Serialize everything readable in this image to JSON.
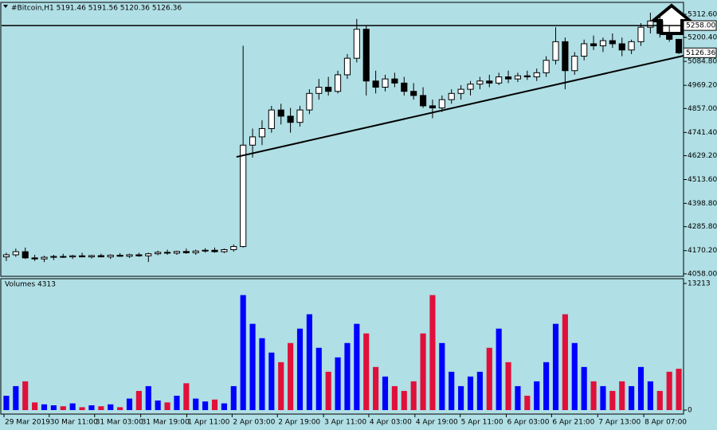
{
  "chart_data": [
    {
      "type": "candlestick",
      "title": "#Bitcoin,H1  5191.46 5191.56 5120.36 5126.36",
      "open": [
        4140,
        4150,
        4165,
        4135,
        4130,
        4138,
        4142,
        4140,
        4145,
        4140,
        4146,
        4140,
        4148,
        4143,
        4150,
        4145,
        4155,
        4162,
        4158,
        4166,
        4160,
        4168,
        4172,
        4165,
        4175,
        4190,
        4680,
        4720,
        4760,
        4850,
        4820,
        4790,
        4850,
        4930,
        4960,
        4940,
        5020,
        5100,
        5240,
        4990,
        4960,
        5000,
        4980,
        4940,
        4920,
        4870,
        4860,
        4900,
        4930,
        4950,
        4975,
        4990,
        4980,
        5010,
        5000,
        5015,
        5010,
        5030,
        5090,
        5180,
        5040,
        5110,
        5170,
        5160,
        5185,
        5170,
        5140,
        5180,
        5250,
        5280,
        5220,
        5191.46
      ],
      "high": [
        4160,
        4180,
        4185,
        4150,
        4145,
        4150,
        4155,
        4150,
        4160,
        4150,
        4155,
        4152,
        4158,
        4155,
        4160,
        4160,
        4170,
        4175,
        4170,
        4180,
        4175,
        4182,
        4185,
        4180,
        4200,
        5160,
        4760,
        4800,
        4870,
        4880,
        4860,
        4870,
        4950,
        5000,
        5010,
        5040,
        5120,
        5290,
        5260,
        5040,
        5020,
        5030,
        5010,
        4980,
        4960,
        4900,
        4920,
        4950,
        4970,
        4990,
        5010,
        5020,
        5030,
        5040,
        5030,
        5040,
        5050,
        5110,
        5250,
        5200,
        5130,
        5190,
        5210,
        5200,
        5220,
        5200,
        5190,
        5270,
        5320,
        5310,
        5260,
        5191.56
      ],
      "low": [
        4120,
        4140,
        4130,
        4120,
        4115,
        4125,
        4135,
        4130,
        4138,
        4132,
        4138,
        4130,
        4140,
        4135,
        4140,
        4115,
        4148,
        4150,
        4150,
        4155,
        4150,
        4160,
        4160,
        4158,
        4165,
        4185,
        4620,
        4680,
        4740,
        4780,
        4740,
        4770,
        4830,
        4900,
        4920,
        4930,
        5000,
        5080,
        4920,
        4930,
        4940,
        4960,
        4920,
        4900,
        4860,
        4810,
        4840,
        4880,
        4900,
        4920,
        4950,
        4960,
        4970,
        4980,
        4985,
        4995,
        4990,
        5010,
        5070,
        4950,
        5020,
        5090,
        5140,
        5130,
        5150,
        5110,
        5120,
        5160,
        5220,
        5200,
        5180,
        5120.36
      ],
      "close": [
        4150,
        4165,
        4135,
        4130,
        4138,
        4142,
        4140,
        4145,
        4140,
        4146,
        4140,
        4148,
        4143,
        4150,
        4145,
        4155,
        4162,
        4158,
        4166,
        4160,
        4168,
        4172,
        4165,
        4175,
        4190,
        4680,
        4720,
        4760,
        4850,
        4820,
        4790,
        4850,
        4930,
        4960,
        4940,
        5020,
        5100,
        5240,
        4990,
        4960,
        5000,
        4980,
        4940,
        4920,
        4870,
        4860,
        4900,
        4930,
        4950,
        4975,
        4990,
        4980,
        5010,
        5000,
        5015,
        5010,
        5030,
        5090,
        5180,
        5040,
        5110,
        5170,
        5160,
        5185,
        5170,
        5140,
        5180,
        5250,
        5280,
        5220,
        5191.46,
        5126.36
      ],
      "xlim": [
        0,
        72
      ],
      "xticks": [
        {
          "value": 0.25,
          "label": "29 Mar 2019"
        },
        {
          "value": 5.03,
          "label": "30 Mar 11:00"
        },
        {
          "value": 9.82,
          "label": "31 Mar 03:00"
        },
        {
          "value": 14.69,
          "label": "31 Mar 19:00"
        },
        {
          "value": 19.55,
          "label": "1 Apr 11:00"
        },
        {
          "value": 24.34,
          "label": "2 Apr 03:00"
        },
        {
          "value": 29.12,
          "label": "2 Apr 19:00"
        },
        {
          "value": 33.99,
          "label": "3 Apr 11:00"
        },
        {
          "value": 38.77,
          "label": "4 Apr 03:00"
        },
        {
          "value": 43.64,
          "label": "4 Apr 19:00"
        },
        {
          "value": 48.42,
          "label": "5 Apr 11:00"
        },
        {
          "value": 53.29,
          "label": "6 Apr 03:00"
        },
        {
          "value": 58.07,
          "label": "6 Apr 21:00"
        },
        {
          "value": 62.94,
          "label": "7 Apr 13:00"
        },
        {
          "value": 67.8,
          "label": "8 Apr 07:00"
        }
      ],
      "ylim": [
        4046,
        5370
      ],
      "yticks": [
        {
          "value": 5312.6,
          "label": "5312.60"
        },
        {
          "value": 5200.4,
          "label": "5200.40"
        },
        {
          "value": 5084.8,
          "label": "5084.80"
        },
        {
          "value": 4969.2,
          "label": "4969.20"
        },
        {
          "value": 4857,
          "label": "4857.00"
        },
        {
          "value": 4741.4,
          "label": "4741.40"
        },
        {
          "value": 4629.2,
          "label": "4629.20"
        },
        {
          "value": 4513.6,
          "label": "4513.60"
        },
        {
          "value": 4398.8,
          "label": "4398.80"
        },
        {
          "value": 4285.8,
          "label": "4285.80"
        },
        {
          "value": 4170.2,
          "label": "4170.20"
        },
        {
          "value": 4058,
          "label": "4058.00"
        }
      ],
      "price_labels": [
        {
          "value": 5258,
          "label": "5258.00"
        },
        {
          "value": 5126.36,
          "label": "5126.36"
        }
      ],
      "trendline": {
        "x": [
          24.8,
          72
        ],
        "y": [
          4623,
          5112
        ]
      },
      "color": "#000000",
      "background": "#b0dfe5"
    },
    {
      "type": "volume",
      "title": "Volumes 4313",
      "values": [
        1500,
        2500,
        3000,
        800,
        600,
        500,
        400,
        700,
        300,
        500,
        400,
        600,
        300,
        1200,
        2000,
        2500,
        1000,
        800,
        1500,
        2800,
        1200,
        900,
        1100,
        700,
        2500,
        12000,
        9000,
        7500,
        6000,
        5000,
        7000,
        8500,
        10000,
        6500,
        4000,
        5500,
        7000,
        9000,
        8000,
        4500,
        3500,
        2500,
        2000,
        3000,
        8000,
        12000,
        7000,
        4000,
        2500,
        3500,
        4000,
        6500,
        8500,
        5000,
        2500,
        1500,
        3000,
        5000,
        9000,
        10000,
        7000,
        4500,
        3000,
        2500,
        2000,
        3000,
        2500,
        4500,
        3000,
        2000,
        4000,
        4313
      ],
      "ylim": [
        -830,
        13710
      ],
      "yticks": [
        13213,
        0
      ],
      "up_color": "#0000ff",
      "down_color": "#e0103a"
    }
  ]
}
